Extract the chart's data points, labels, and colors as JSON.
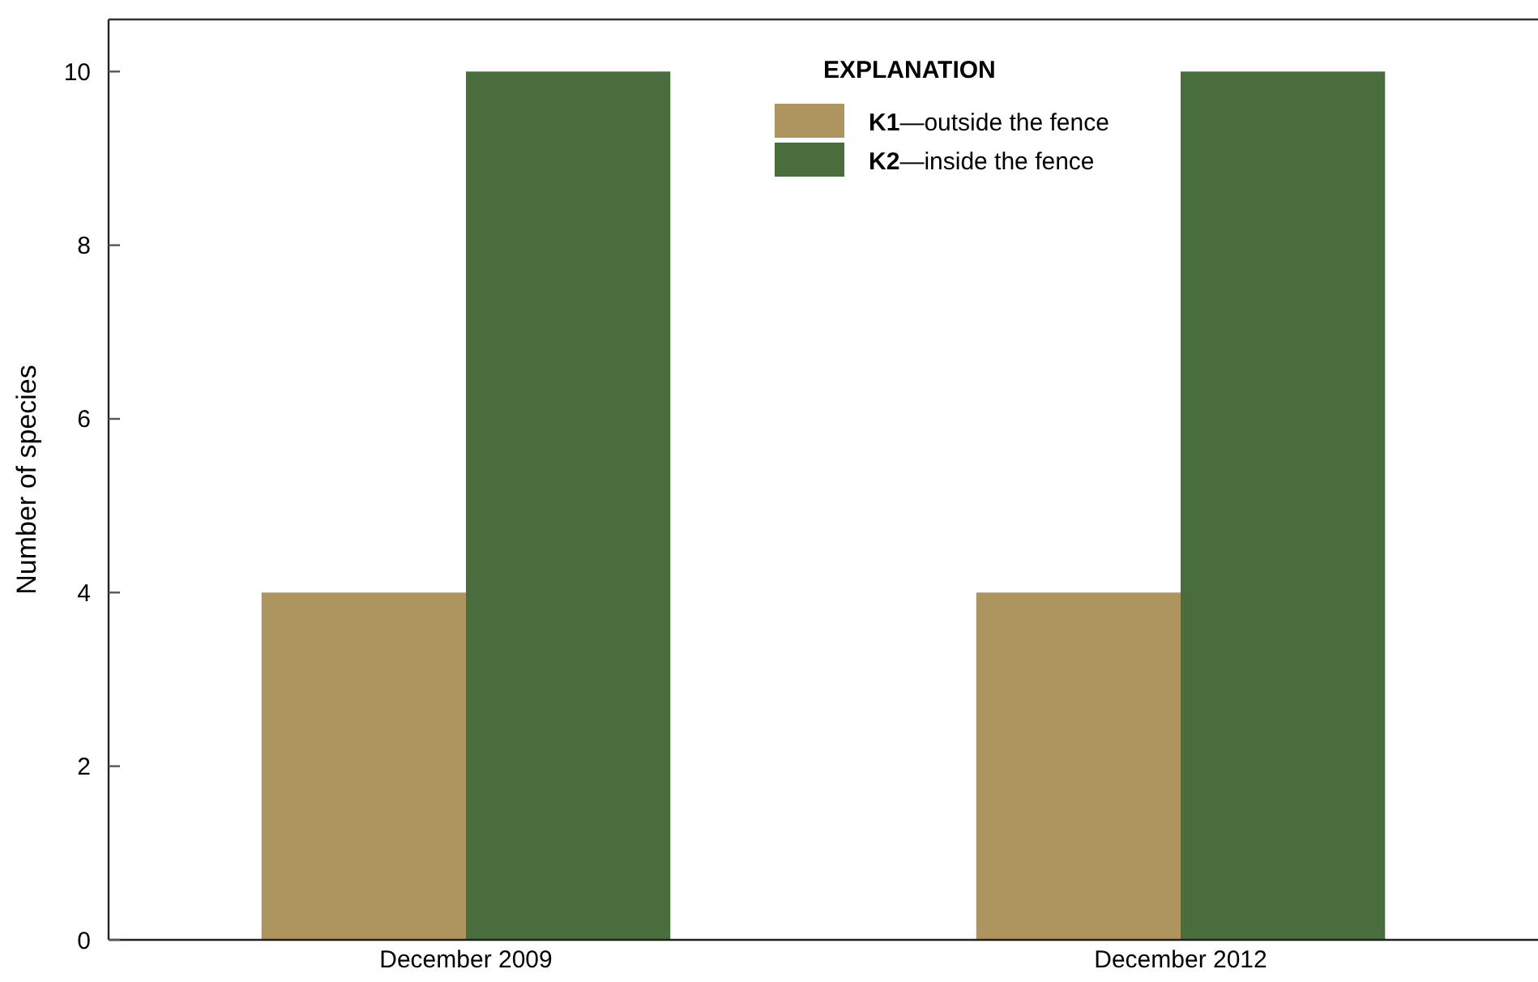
{
  "chart_data": {
    "type": "bar",
    "ylabel": "Number of species",
    "legend_title": "EXPLANATION",
    "categories": [
      "December 2009",
      "December 2012"
    ],
    "series": [
      {
        "name": "K1—outside the fence",
        "color": "#ae955f",
        "values": [
          4,
          4
        ]
      },
      {
        "name": "K2—inside the fence",
        "color": "#4a6d3d",
        "values": [
          10,
          10
        ]
      }
    ],
    "ylim": [
      0,
      10.6
    ],
    "yticks": [
      0,
      2,
      4,
      6,
      8,
      10
    ],
    "grid": false,
    "legend": "top"
  }
}
